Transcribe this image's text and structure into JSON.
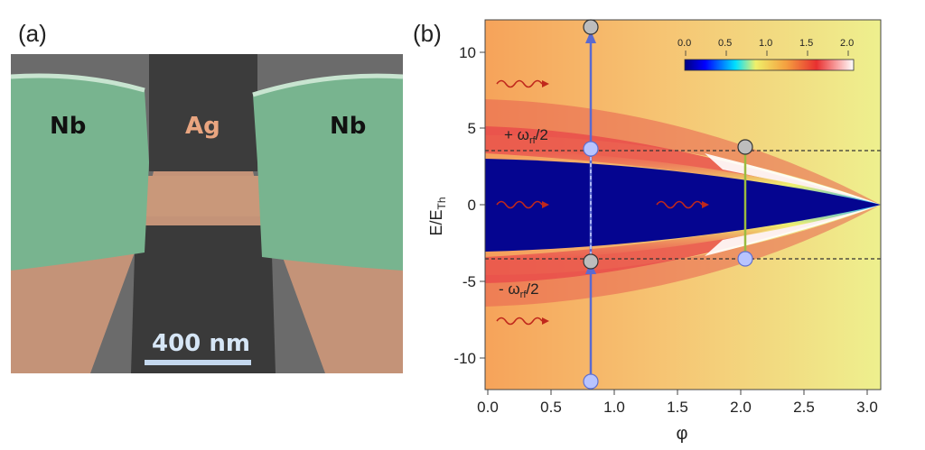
{
  "panel_a": {
    "label": "(a)",
    "material_left": "Nb",
    "material_center": "Ag",
    "material_right": "Nb",
    "scalebar": "400 nm",
    "colors": {
      "nb": "#7fbf98",
      "ag": "#d9a27e",
      "sem_dark": "#3a3a3a",
      "sem_mid": "#6f6f6f"
    }
  },
  "panel_b": {
    "label": "(b)",
    "xlabel": "φ",
    "ylabel_main": "E/E",
    "ylabel_sub": "Th",
    "x_ticks": [
      "0.0",
      "0.5",
      "1.0",
      "1.5",
      "2.0",
      "2.5",
      "3.0"
    ],
    "y_ticks": [
      "10",
      "5",
      "0",
      "-5",
      "-10"
    ],
    "colorbar_ticks": [
      "0.0",
      "0.5",
      "1.0",
      "1.5",
      "2.0"
    ],
    "annotation_plus": "+ ω",
    "annotation_plus_sub": "rf",
    "annotation_plus_tail": "/2",
    "annotation_minus": "- ω",
    "annotation_minus_sub": "rf",
    "annotation_minus_tail": "/2"
  },
  "chart_data": {
    "type": "heatmap",
    "xlabel": "φ",
    "ylabel": "E/E_Th",
    "xlim": [
      0,
      3.14
    ],
    "ylim": [
      -12,
      12
    ],
    "colorbar_range": [
      0.0,
      2.0
    ],
    "gap_edge_at_phi0": 3.1,
    "dashed_lines_y": [
      3.5,
      -3.5
    ],
    "transitions": [
      {
        "phi": 0.83,
        "from_E": -11.6,
        "to_E": -3.7,
        "color": "#5566cc"
      },
      {
        "phi": 0.83,
        "from_E": 3.7,
        "to_E": 11.6,
        "color": "#5566cc"
      },
      {
        "phi": 2.07,
        "from_E": -3.5,
        "to_E": 3.7,
        "color": "#9abb44"
      }
    ]
  }
}
